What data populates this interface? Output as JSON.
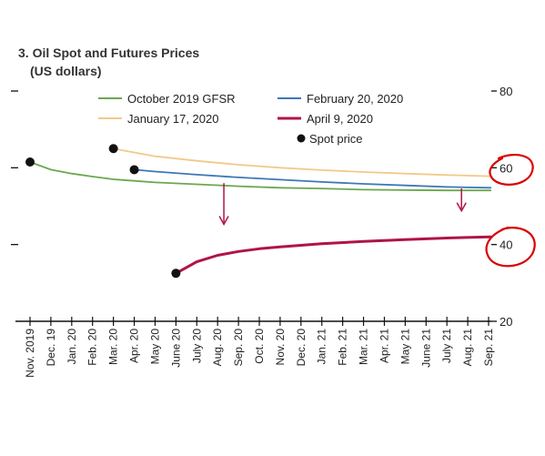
{
  "chart_data": {
    "type": "line",
    "title": "3. Oil Spot and Futures Prices",
    "subtitle": "(US dollars)",
    "categories": [
      "Nov. 2019",
      "Dec. 19",
      "Jan. 20",
      "Feb. 20",
      "Mar. 20",
      "Apr. 20",
      "May 20",
      "June 20",
      "July 20",
      "Aug. 20",
      "Sep. 20",
      "Oct. 20",
      "Nov. 20",
      "Dec. 20",
      "Jan. 21",
      "Feb. 21",
      "Mar. 21",
      "Apr. 21",
      "May 21",
      "June 21",
      "July 21",
      "Aug. 21",
      "Sep. 21"
    ],
    "ylim": [
      20,
      80
    ],
    "yticks": [
      20,
      40,
      60,
      80
    ],
    "series": [
      {
        "name": "October 2019 GFSR",
        "color": "#6aa84f",
        "x": [
          0,
          1,
          2,
          3,
          4,
          5,
          6,
          8,
          10,
          12,
          14,
          16,
          18,
          20,
          22.1
        ],
        "y": [
          61.5,
          59.5,
          58.5,
          57.7,
          57,
          56.6,
          56.2,
          55.7,
          55.2,
          54.8,
          54.6,
          54.3,
          54.2,
          54.1,
          54.1
        ]
      },
      {
        "name": "January 17, 2020",
        "color": "#f2c98a",
        "x": [
          4,
          5,
          6,
          8,
          10,
          12,
          14,
          16,
          18,
          20,
          22.1
        ],
        "y": [
          65,
          64,
          63,
          61.8,
          60.8,
          60,
          59.4,
          58.9,
          58.5,
          58.1,
          57.8
        ]
      },
      {
        "name": "February 20, 2020",
        "color": "#3d78b5",
        "x": [
          5,
          6,
          8,
          10,
          12,
          14,
          16,
          18,
          20,
          22.1
        ],
        "y": [
          59.5,
          59,
          58.2,
          57.5,
          56.9,
          56.3,
          55.8,
          55.4,
          55,
          54.8
        ]
      },
      {
        "name": "April 9, 2020",
        "color": "#b0134a",
        "x": [
          7,
          8,
          9,
          10,
          11,
          12,
          14,
          16,
          18,
          20,
          22.1
        ],
        "y": [
          32.5,
          35.5,
          37.2,
          38.2,
          38.9,
          39.4,
          40.2,
          40.8,
          41.3,
          41.7,
          42
        ]
      }
    ],
    "spot_price": {
      "name": "Spot price",
      "color": "#111111",
      "points": [
        {
          "x": 0,
          "y": 61.5
        },
        {
          "x": 4,
          "y": 65
        },
        {
          "x": 5,
          "y": 59.5
        },
        {
          "x": 7,
          "y": 32.5
        }
      ]
    },
    "legend": [
      "October 2019 GFSR",
      "February 20, 2020",
      "January 17, 2020",
      "April 9, 2020",
      "Spot price"
    ],
    "annotations": [
      {
        "type": "arrow",
        "color": "#b0134a",
        "x": 9.3,
        "from_y": 56,
        "to_y": 45.5
      },
      {
        "type": "arrow",
        "color": "#b0134a",
        "x": 20.7,
        "from_y": 54.6,
        "to_y": 49
      },
      {
        "type": "circle",
        "color": "#d90000",
        "label": "60"
      },
      {
        "type": "circle",
        "color": "#d90000",
        "label": "40"
      }
    ],
    "grid": false
  }
}
